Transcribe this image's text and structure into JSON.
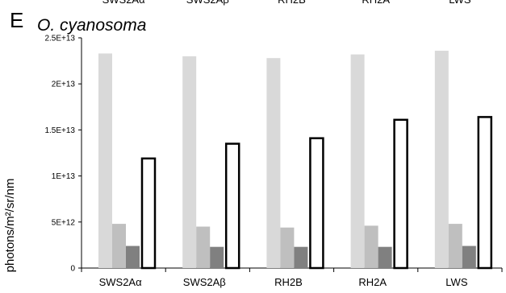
{
  "panel_letter": "E",
  "cropped_header_labels": [
    "SWS2Aα",
    "SWS2Aβ",
    "RH2B",
    "RH2A",
    "LWS"
  ],
  "chart_data": {
    "type": "bar",
    "title": "O. cyanosoma",
    "ylabel": "photons/m²/sr/nm",
    "xlabel": "",
    "categories": [
      "SWS2Aα",
      "SWS2Aβ",
      "RH2B",
      "RH2A",
      "LWS"
    ],
    "ylim": [
      0,
      25000000000000.0
    ],
    "yticks": [
      0,
      5000000000000.0,
      10000000000000.0,
      15000000000000.0,
      20000000000000.0,
      25000000000000.0
    ],
    "ytick_labels": [
      "0",
      "5E+12",
      "1E+13",
      "1.5E+13",
      "2E+13",
      "2.5E+13"
    ],
    "grid": false,
    "legend": "none",
    "series": [
      {
        "values": [
          23300000000000.0,
          23000000000000.0,
          22800000000000.0,
          23200000000000.0,
          23600000000000.0
        ],
        "color": "#d9d9d9",
        "stroke": "none"
      },
      {
        "values": [
          4800000000000.0,
          4500000000000.0,
          4400000000000.0,
          4600000000000.0,
          4800000000000.0
        ],
        "color": "#bfbfbf",
        "stroke": "none"
      },
      {
        "values": [
          2400000000000.0,
          2300000000000.0,
          2300000000000.0,
          2300000000000.0,
          2400000000000.0
        ],
        "color": "#808080",
        "stroke": "none"
      },
      {
        "values": [
          11900000000000.0,
          13500000000000.0,
          14100000000000.0,
          16100000000000.0,
          16400000000000.0
        ],
        "color": "#ffffff",
        "stroke": "#000000"
      }
    ]
  }
}
